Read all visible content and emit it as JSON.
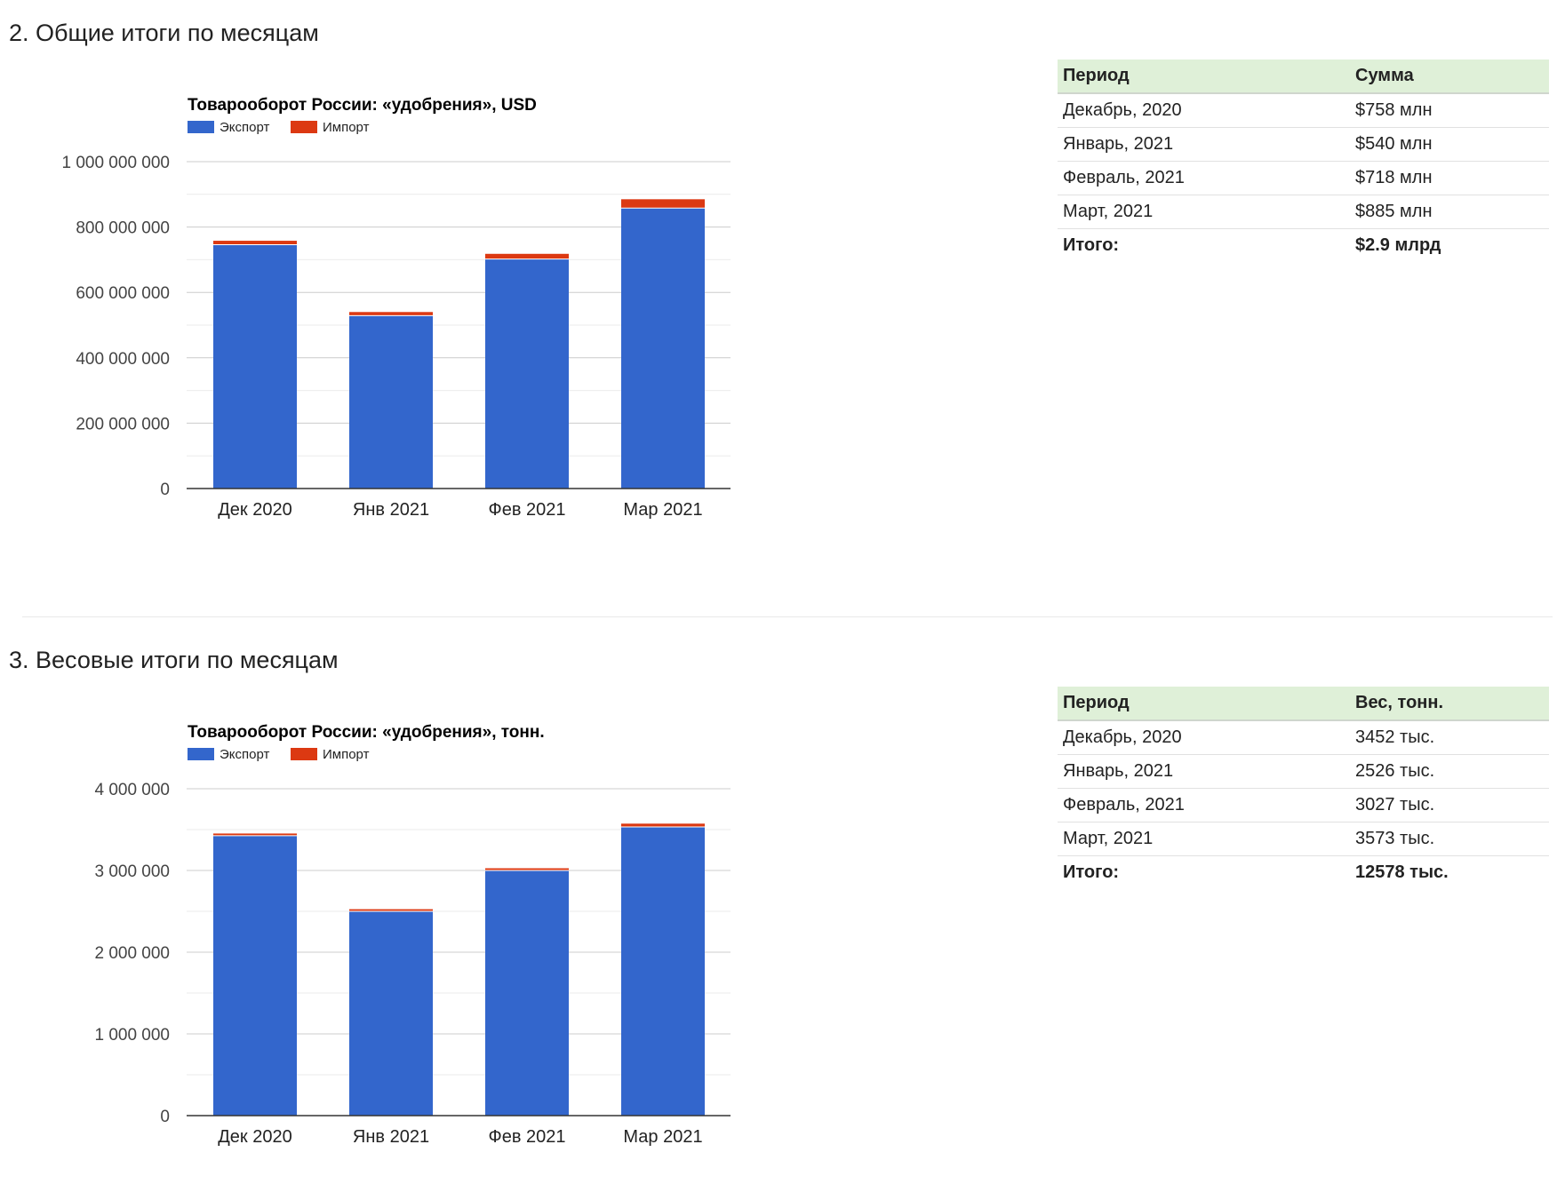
{
  "sections": [
    {
      "heading": "2. Общие итоги по месяцам",
      "table": {
        "col_period": "Период",
        "col_value": "Сумма",
        "rows": [
          {
            "period": "Декабрь, 2020",
            "value": "$758 млн"
          },
          {
            "period": "Январь, 2021",
            "value": "$540 млн"
          },
          {
            "period": "Февраль, 2021",
            "value": "$718 млн"
          },
          {
            "period": "Март, 2021",
            "value": "$885 млн"
          }
        ],
        "total_label": "Итого:",
        "total_value": "$2.9 млрд"
      }
    },
    {
      "heading": "3. Весовые итоги по месяцам",
      "table": {
        "col_period": "Период",
        "col_value": "Вес, тонн.",
        "rows": [
          {
            "period": "Декабрь, 2020",
            "value": "3452 тыс."
          },
          {
            "period": "Январь, 2021",
            "value": "2526 тыс."
          },
          {
            "period": "Февраль, 2021",
            "value": "3027 тыс."
          },
          {
            "period": "Март, 2021",
            "value": "3573 тыс."
          }
        ],
        "total_label": "Итого:",
        "total_value": "12578 тыс."
      }
    }
  ],
  "chart_data": [
    {
      "type": "bar",
      "stacked": true,
      "title": "Товарооборот России: «удобрения», USD",
      "categories": [
        "Дек 2020",
        "Янв 2021",
        "Фев 2021",
        "Мар 2021"
      ],
      "series": [
        {
          "name": "Экспорт",
          "color": "#3366cc",
          "values": [
            746000000,
            529000000,
            702000000,
            858000000
          ]
        },
        {
          "name": "Импорт",
          "color": "#dc3912",
          "values": [
            12000000,
            11000000,
            16000000,
            27000000
          ]
        }
      ],
      "ylim": [
        0,
        1000000000
      ],
      "yticks": [
        0,
        200000000,
        400000000,
        600000000,
        800000000,
        1000000000
      ],
      "ytick_labels": [
        "0",
        "200 000 000",
        "400 000 000",
        "600 000 000",
        "800 000 000",
        "1 000 000 000"
      ],
      "grid": true,
      "legend": "top-left"
    },
    {
      "type": "bar",
      "stacked": true,
      "title": "Товарооборот России: «удобрения», тонн.",
      "categories": [
        "Дек 2020",
        "Янв 2021",
        "Фев 2021",
        "Мар 2021"
      ],
      "series": [
        {
          "name": "Экспорт",
          "color": "#3366cc",
          "values": [
            3425000,
            2500000,
            3000000,
            3533000
          ]
        },
        {
          "name": "Импорт",
          "color": "#dc3912",
          "values": [
            27000,
            26000,
            27000,
            40000
          ]
        }
      ],
      "ylim": [
        0,
        4000000
      ],
      "yticks": [
        0,
        1000000,
        2000000,
        3000000,
        4000000
      ],
      "ytick_labels": [
        "0",
        "1 000 000",
        "2 000 000",
        "3 000 000",
        "4 000 000"
      ],
      "grid": true,
      "legend": "top-left"
    }
  ]
}
